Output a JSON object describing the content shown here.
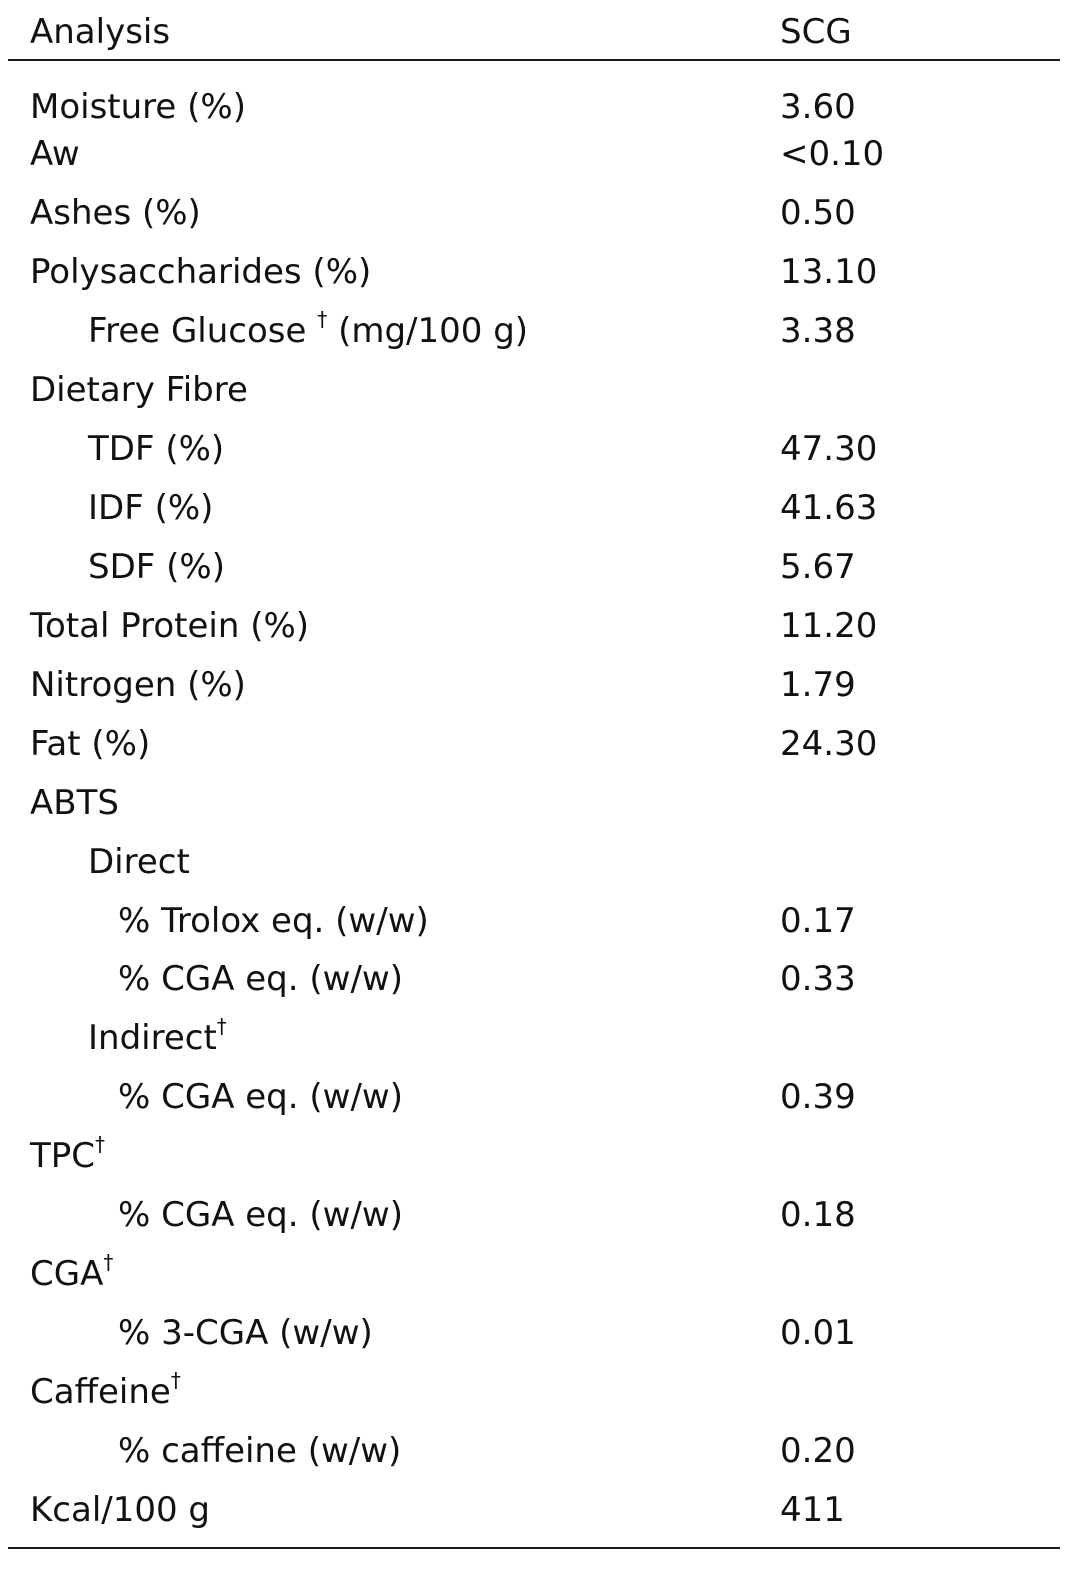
{
  "header": {
    "analysis_label": "Analysis",
    "scg_label": "SCG"
  },
  "rows": [
    {
      "label": "Moisture (%)",
      "value": "3.60",
      "indent": 0
    },
    {
      "label": "Aw",
      "value": "<0.10",
      "indent": 0
    },
    {
      "label": "Ashes (%)",
      "value": "0.50",
      "indent": 0
    },
    {
      "label": "Polysaccharides (%)",
      "value": "13.10",
      "indent": 0
    },
    {
      "label": "Free Glucose",
      "dagger": "†",
      "label_suffix": "(mg/100 g)",
      "value": "3.38",
      "indent": 1
    },
    {
      "label": "Dietary Fibre",
      "value": "",
      "indent": 0
    },
    {
      "label": "TDF (%)",
      "value": "47.30",
      "indent": 1
    },
    {
      "label": "IDF (%)",
      "value": "41.63",
      "indent": 1
    },
    {
      "label": "SDF (%)",
      "value": "5.67",
      "indent": 1
    },
    {
      "label": "Total Protein (%)",
      "value": "11.20",
      "indent": 0
    },
    {
      "label": "Nitrogen (%)",
      "value": "1.79",
      "indent": 0
    },
    {
      "label": "Fat (%)",
      "value": "24.30",
      "indent": 0
    },
    {
      "label": "ABTS",
      "value": "",
      "indent": 0
    },
    {
      "label": "Direct",
      "value": "",
      "indent": 1
    },
    {
      "label": "% Trolox eq. (w/w)",
      "value": "0.17",
      "indent": 2
    },
    {
      "label": "% CGA eq. (w/w)",
      "value": "0.33",
      "indent": 2
    },
    {
      "label": "Indirect",
      "dagger": "†",
      "value": "",
      "indent": 1
    },
    {
      "label": "% CGA eq. (w/w)",
      "value": "0.39",
      "indent": 2
    },
    {
      "label": "TPC",
      "dagger": "†",
      "value": "",
      "indent": 0
    },
    {
      "label": "% CGA eq. (w/w)",
      "value": "0.18",
      "indent": 2
    },
    {
      "label": "CGA",
      "dagger": "†",
      "value": "",
      "indent": 0
    },
    {
      "label": "% 3-CGA (w/w)",
      "value": "0.01",
      "indent": 2
    },
    {
      "label": "Caffeine",
      "dagger": "†",
      "value": "",
      "indent": 0
    },
    {
      "label": "% caffeine (w/w)",
      "value": "0.20",
      "indent": 2
    },
    {
      "label": "Kcal/100 g",
      "value": "411",
      "indent": 0
    }
  ]
}
